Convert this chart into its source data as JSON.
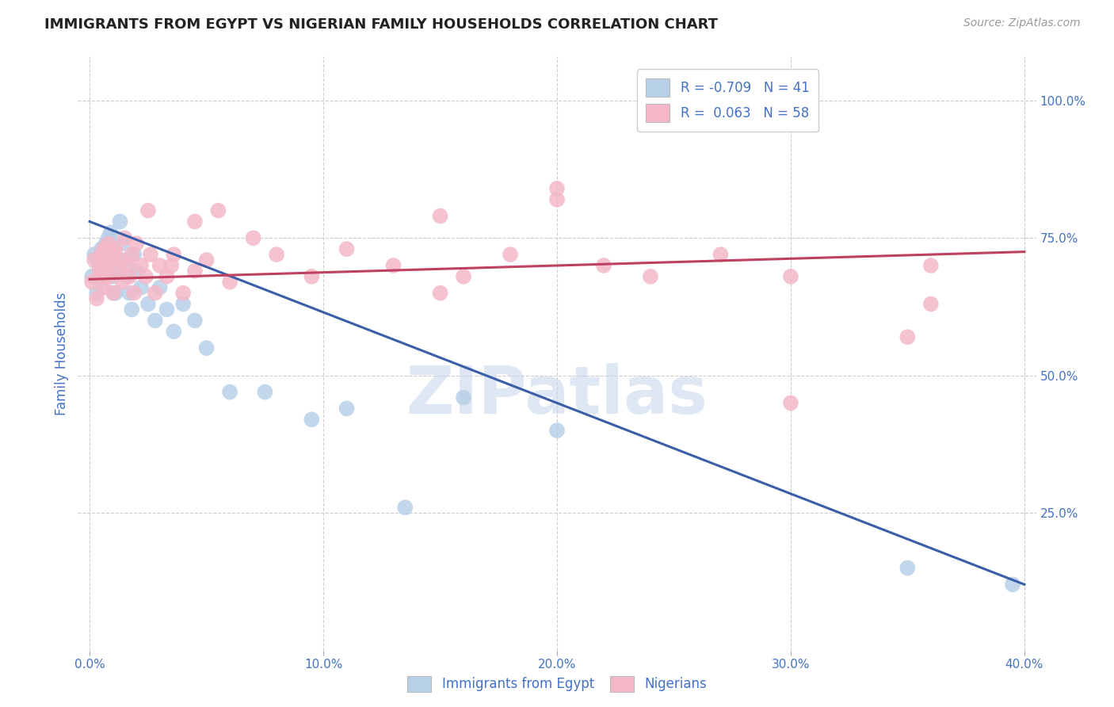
{
  "title": "IMMIGRANTS FROM EGYPT VS NIGERIAN FAMILY HOUSEHOLDS CORRELATION CHART",
  "source": "Source: ZipAtlas.com",
  "ylabel": "Family Households",
  "x_tick_labels": [
    "0.0%",
    "10.0%",
    "20.0%",
    "30.0%",
    "40.0%"
  ],
  "x_tick_values": [
    0.0,
    0.1,
    0.2,
    0.3,
    0.4
  ],
  "y_tick_labels": [
    "100.0%",
    "75.0%",
    "50.0%",
    "25.0%"
  ],
  "y_tick_values": [
    1.0,
    0.75,
    0.5,
    0.25
  ],
  "xlim": [
    -0.005,
    0.405
  ],
  "ylim": [
    0.0,
    1.08
  ],
  "legend_entries": [
    {
      "label": "R = -0.709   N = 41",
      "color": "#b8d0e8"
    },
    {
      "label": "R =  0.063   N = 58",
      "color": "#f4b8c8"
    }
  ],
  "watermark": "ZIPatlas",
  "dot_blue": "#b8d0e8",
  "dot_pink": "#f4b8c8",
  "trend_blue": "#3a5fa8",
  "trend_pink": "#c04060",
  "axis_color": "#4472c4",
  "grid_color": "#cccccc",
  "blue_scatter_x": [
    0.001,
    0.002,
    0.003,
    0.004,
    0.005,
    0.005,
    0.006,
    0.007,
    0.008,
    0.008,
    0.009,
    0.01,
    0.01,
    0.011,
    0.012,
    0.013,
    0.014,
    0.015,
    0.016,
    0.017,
    0.018,
    0.019,
    0.02,
    0.022,
    0.025,
    0.028,
    0.03,
    0.033,
    0.036,
    0.04,
    0.045,
    0.05,
    0.06,
    0.075,
    0.095,
    0.11,
    0.135,
    0.16,
    0.2,
    0.35,
    0.395
  ],
  "blue_scatter_y": [
    0.68,
    0.72,
    0.65,
    0.7,
    0.73,
    0.67,
    0.71,
    0.74,
    0.69,
    0.75,
    0.76,
    0.72,
    0.68,
    0.65,
    0.7,
    0.78,
    0.74,
    0.71,
    0.68,
    0.65,
    0.62,
    0.72,
    0.69,
    0.66,
    0.63,
    0.6,
    0.66,
    0.62,
    0.58,
    0.63,
    0.6,
    0.55,
    0.47,
    0.47,
    0.42,
    0.44,
    0.26,
    0.46,
    0.4,
    0.15,
    0.12
  ],
  "pink_scatter_x": [
    0.001,
    0.002,
    0.003,
    0.004,
    0.005,
    0.005,
    0.006,
    0.006,
    0.007,
    0.008,
    0.008,
    0.009,
    0.01,
    0.01,
    0.011,
    0.012,
    0.013,
    0.014,
    0.015,
    0.016,
    0.017,
    0.018,
    0.019,
    0.02,
    0.022,
    0.024,
    0.026,
    0.028,
    0.03,
    0.033,
    0.036,
    0.04,
    0.045,
    0.05,
    0.06,
    0.07,
    0.08,
    0.095,
    0.11,
    0.13,
    0.15,
    0.16,
    0.18,
    0.2,
    0.22,
    0.24,
    0.27,
    0.3,
    0.35,
    0.36,
    0.025,
    0.035,
    0.045,
    0.055,
    0.15,
    0.2,
    0.3,
    0.36
  ],
  "pink_scatter_y": [
    0.67,
    0.71,
    0.64,
    0.69,
    0.72,
    0.68,
    0.73,
    0.66,
    0.7,
    0.74,
    0.68,
    0.71,
    0.72,
    0.65,
    0.73,
    0.69,
    0.71,
    0.67,
    0.75,
    0.7,
    0.68,
    0.72,
    0.65,
    0.74,
    0.7,
    0.68,
    0.72,
    0.65,
    0.7,
    0.68,
    0.72,
    0.65,
    0.69,
    0.71,
    0.67,
    0.75,
    0.72,
    0.68,
    0.73,
    0.7,
    0.65,
    0.68,
    0.72,
    0.82,
    0.7,
    0.68,
    0.72,
    0.45,
    0.57,
    0.63,
    0.8,
    0.7,
    0.78,
    0.8,
    0.79,
    0.84,
    0.68,
    0.7
  ],
  "blue_trend_x": [
    0.0,
    0.4
  ],
  "blue_trend_y": [
    0.78,
    0.12
  ],
  "pink_trend_x": [
    0.0,
    0.4
  ],
  "pink_trend_y": [
    0.675,
    0.725
  ],
  "bottom_legend": [
    "Immigrants from Egypt",
    "Nigerians"
  ]
}
